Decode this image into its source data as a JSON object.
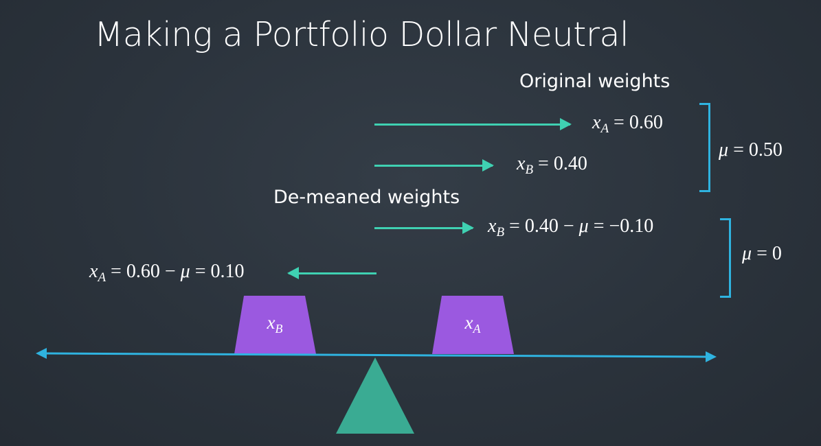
{
  "title": "Making a Portfolio Dollar Neutral",
  "original": {
    "heading": "Original weights",
    "xA": {
      "var": "x",
      "sub": "A",
      "rhs": "= 0.60"
    },
    "xB": {
      "var": "x",
      "sub": "B",
      "rhs": "= 0.40"
    },
    "mean": {
      "var": "μ",
      "rhs": "= 0.50"
    }
  },
  "demeaned": {
    "heading": "De-meaned weights",
    "xB": {
      "var": "x",
      "sub": "B",
      "rhs_pre": "= 0.40 − ",
      "mu": "μ",
      "rhs_post": " = −0.10"
    },
    "xA": {
      "var": "x",
      "sub": "A",
      "rhs_pre": "= 0.60 − ",
      "mu": "μ",
      "rhs_post": " = 0.10"
    },
    "mean": {
      "var": "μ",
      "rhs": "= 0"
    }
  },
  "balance": {
    "weight_B": {
      "var": "x",
      "sub": "B"
    },
    "weight_A": {
      "var": "x",
      "sub": "A"
    }
  },
  "colors": {
    "arrow": "#3fd1b2",
    "bracket": "#2fb3e0",
    "beam": "#2fb3e0",
    "weight": "#9b59e0",
    "fulcrum": "#3aab93"
  }
}
